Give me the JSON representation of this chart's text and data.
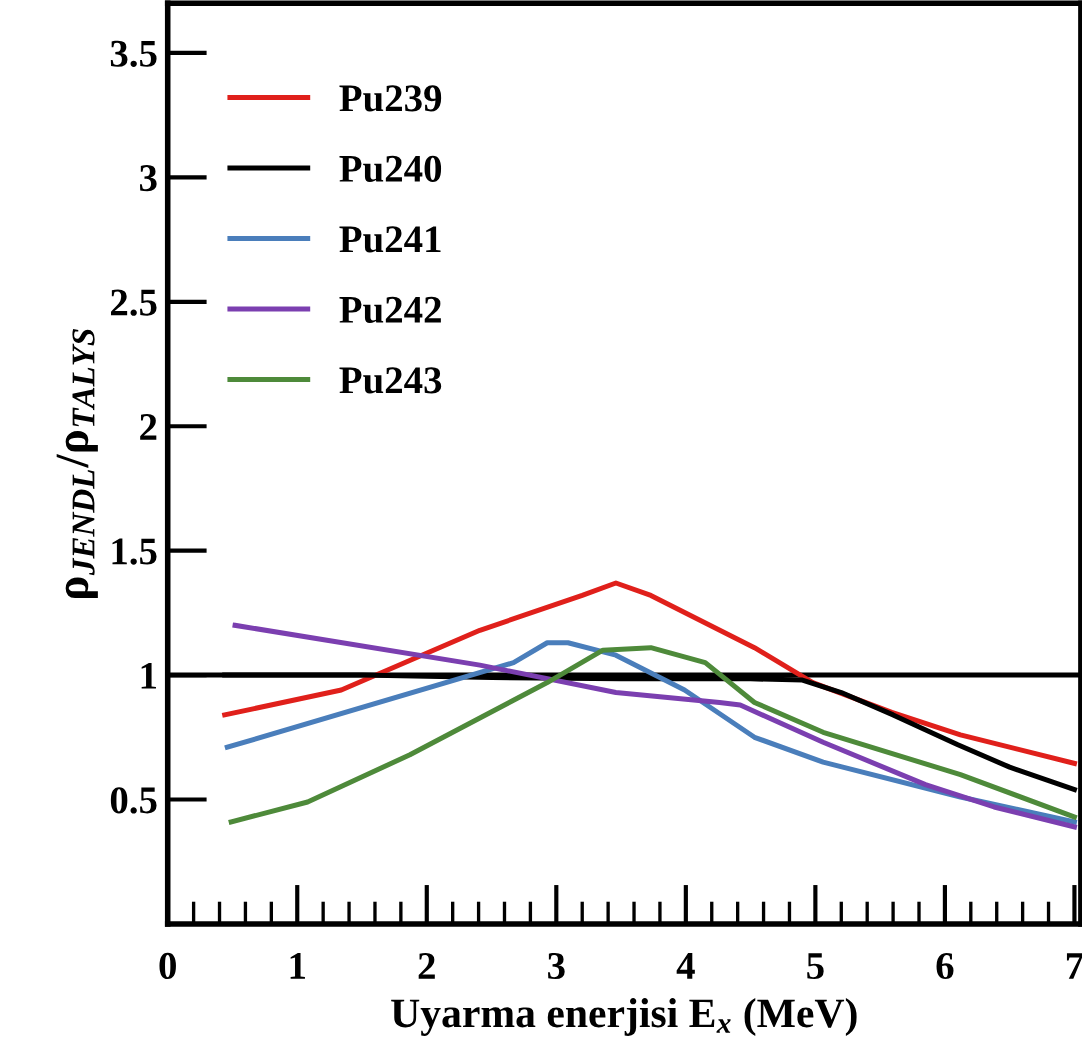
{
  "chart_data": {
    "type": "line",
    "xlabel": "Uyarma enerjisi E$_{x}$ (MeV)",
    "ylabel": "ρ$_{JENDL}$/ρ$_{TALYS}$",
    "xlim": [
      0,
      7.05
    ],
    "xticks": [
      0,
      1,
      2,
      3,
      4,
      5,
      6,
      7
    ],
    "ylim": [
      0,
      3.7
    ],
    "yticks": [
      0.5,
      1,
      1.5,
      2,
      2.5,
      3,
      3.5
    ],
    "grid": false,
    "legend": "top left",
    "line_style": "solid",
    "marker": "none",
    "ref_lines": [
      {
        "axis": "y",
        "value": 1,
        "color": "#000000"
      }
    ],
    "series": [
      {
        "name": "Pu239",
        "color": "#e0201b",
        "x": [
          0.44,
          1.34,
          2.41,
          3.2,
          3.46,
          3.73,
          4.53,
          4.98,
          5.59,
          6.12,
          7.0
        ],
        "values": [
          0.84,
          0.94,
          1.18,
          1.32,
          1.37,
          1.32,
          1.11,
          0.97,
          0.85,
          0.76,
          0.645
        ]
      },
      {
        "name": "Pu240",
        "color": "#000000",
        "x": [
          0.44,
          1.5,
          2.5,
          3.5,
          4.5,
          4.9,
          5.2,
          5.6,
          6.1,
          6.5,
          7.0
        ],
        "values": [
          1.0,
          1.0,
          0.99,
          0.985,
          0.985,
          0.98,
          0.93,
          0.84,
          0.72,
          0.63,
          0.54
        ]
      },
      {
        "name": "Pu241",
        "color": "#4a7ebb",
        "x": [
          0.46,
          2.67,
          2.93,
          3.09,
          3.46,
          3.99,
          4.53,
          5.06,
          6.12,
          7.0
        ],
        "values": [
          0.71,
          1.05,
          1.13,
          1.13,
          1.08,
          0.94,
          0.75,
          0.65,
          0.51,
          0.41
        ]
      },
      {
        "name": "Pu242",
        "color": "#7b3fb0",
        "x": [
          0.52,
          2.41,
          3.46,
          4.26,
          4.42,
          5.06,
          5.85,
          6.38,
          7.0
        ],
        "values": [
          1.2,
          1.04,
          0.93,
          0.89,
          0.88,
          0.73,
          0.56,
          0.47,
          0.39
        ]
      },
      {
        "name": "Pu243",
        "color": "#4e8a3a",
        "x": [
          0.49,
          1.08,
          1.87,
          2.93,
          3.36,
          3.73,
          4.15,
          4.53,
          5.06,
          6.12,
          7.0
        ],
        "values": [
          0.41,
          0.49,
          0.68,
          0.97,
          1.1,
          1.11,
          1.05,
          0.89,
          0.77,
          0.6,
          0.43
        ]
      }
    ]
  }
}
